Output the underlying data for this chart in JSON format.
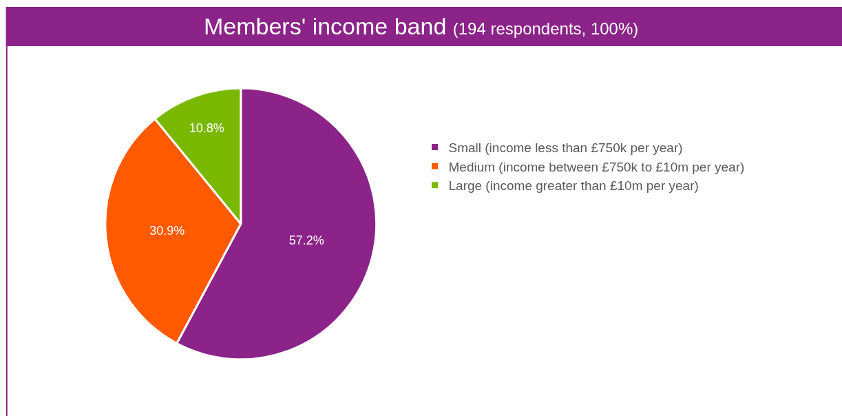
{
  "chart_data": {
    "type": "pie",
    "title": "Members' income band",
    "subtitle": "(194 respondents, 100%)",
    "categories": [
      "Small (income less than £750k per year)",
      "Medium (income between £750k to £10m per year)",
      "Large (income greater than £10m per year)"
    ],
    "values": [
      57.2,
      30.9,
      10.8
    ],
    "colors": [
      "#8b2389",
      "#ff5a00",
      "#7ab800"
    ],
    "value_labels": [
      "57.2%",
      "30.9%",
      "10.8%"
    ],
    "legend": "right"
  }
}
